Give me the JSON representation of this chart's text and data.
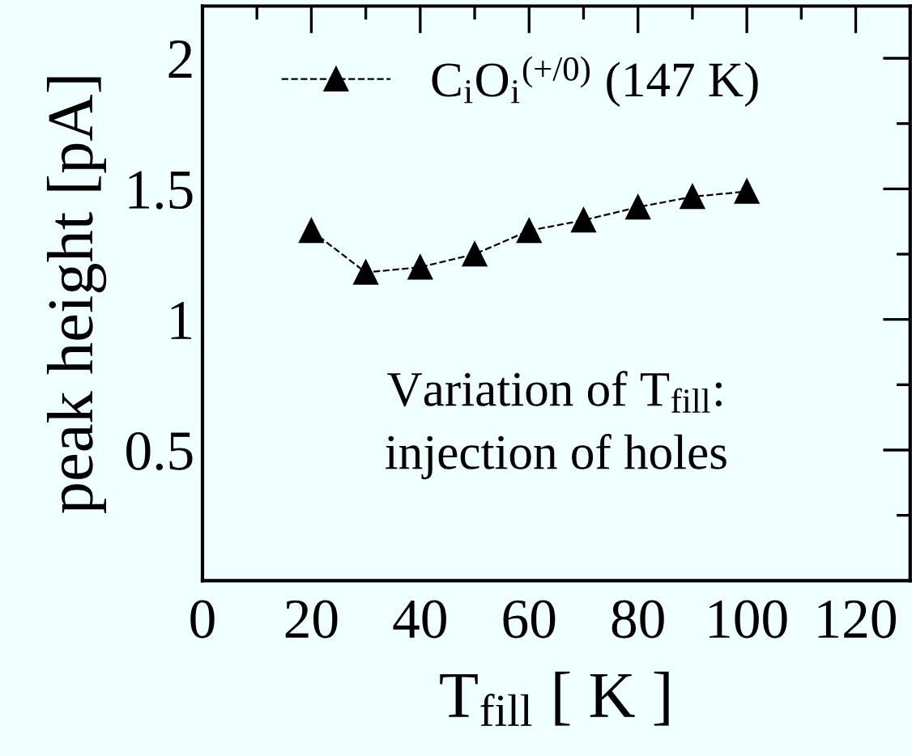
{
  "chart_data": {
    "type": "line",
    "xlabel": "T$_{fill}$ [ K ]",
    "ylabel": "peak height [pA]",
    "x": [
      20,
      30,
      40,
      50,
      60,
      70,
      80,
      90,
      100
    ],
    "series": [
      {
        "name": "C$_{i}$O$_{i}$$^{(+/0)}$ (147 K)",
        "color": "#000000",
        "values": [
          1.34,
          1.18,
          1.2,
          1.25,
          1.34,
          1.38,
          1.43,
          1.47,
          1.49
        ]
      }
    ],
    "xlim": [
      0,
      130
    ],
    "xticks": [
      0,
      20,
      40,
      60,
      80,
      100,
      120
    ],
    "ylim": [
      0,
      2.2
    ],
    "yticks": [
      0.5,
      1,
      1.5,
      2
    ],
    "marker": "triangle",
    "line_style": "dashed",
    "legend": "top",
    "grid": false,
    "annotations": [
      "Variation of T$_{fill}$:\ninjection of holes"
    ]
  }
}
